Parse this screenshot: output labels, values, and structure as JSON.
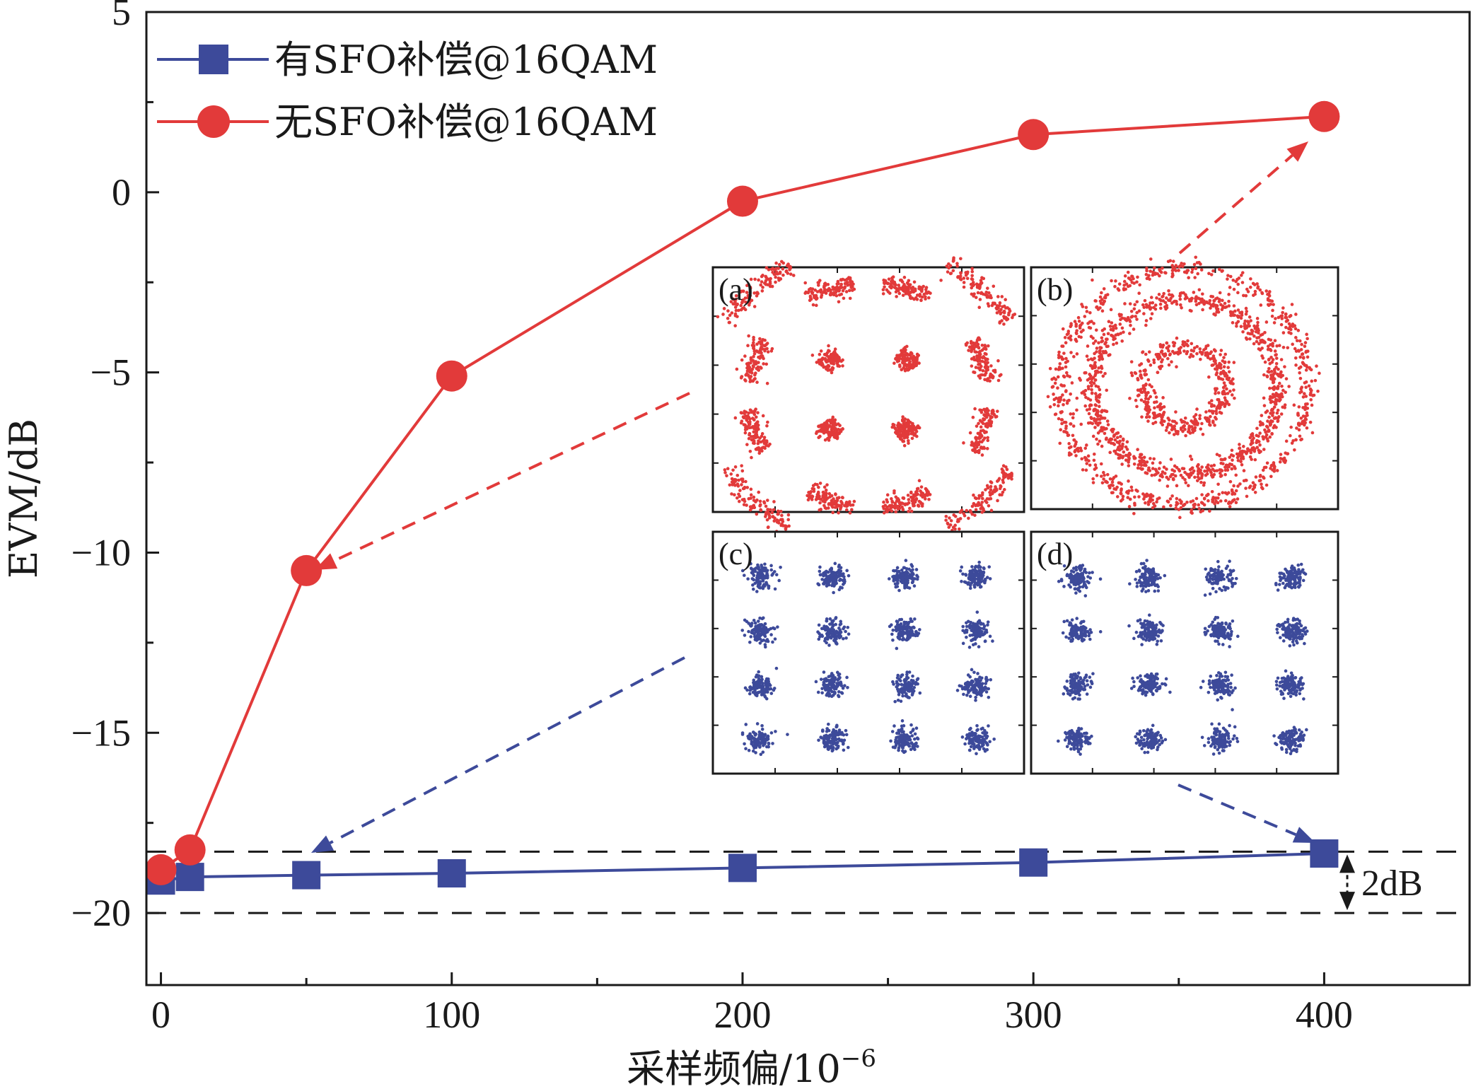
{
  "chart_data": {
    "type": "line",
    "title": "",
    "xlabel": "采样频偏/10",
    "xlabel_superscript": "−6",
    "ylabel": "EVM/dB",
    "xlim": [
      -5,
      450
    ],
    "ylim": [
      -22,
      5
    ],
    "x_ticks": [
      0,
      100,
      200,
      300,
      400
    ],
    "y_ticks": [
      5,
      0,
      -5,
      -10,
      -15,
      -20
    ],
    "y_tick_labels": [
      "5",
      "0",
      "−5",
      "−10",
      "−15",
      "−20"
    ],
    "grid": false,
    "legend_position": "top-left",
    "series": [
      {
        "name": "有SFO补偿@16QAM",
        "color": "#3d4a9a",
        "marker": "square",
        "x": [
          0,
          10,
          50,
          100,
          200,
          300,
          400
        ],
        "y": [
          -19.1,
          -19.0,
          -18.95,
          -18.9,
          -18.75,
          -18.6,
          -18.35
        ]
      },
      {
        "name": "无SFO补偿@16QAM",
        "color": "#e23a3a",
        "marker": "circle",
        "x": [
          0,
          10,
          50,
          100,
          200,
          300,
          400
        ],
        "y": [
          -18.8,
          -18.25,
          -10.5,
          -5.1,
          -0.25,
          1.6,
          2.1
        ]
      }
    ],
    "reference_lines": [
      -18.3,
      -20.0
    ],
    "annotation": "2dB",
    "insets": [
      {
        "label": "(a)",
        "kind": "rotated-16qam",
        "color": "#e23a3a"
      },
      {
        "label": "(b)",
        "kind": "rings",
        "color": "#e23a3a"
      },
      {
        "label": "(c)",
        "kind": "16qam",
        "color": "#3d4a9a"
      },
      {
        "label": "(d)",
        "kind": "16qam",
        "color": "#3d4a9a"
      }
    ]
  }
}
